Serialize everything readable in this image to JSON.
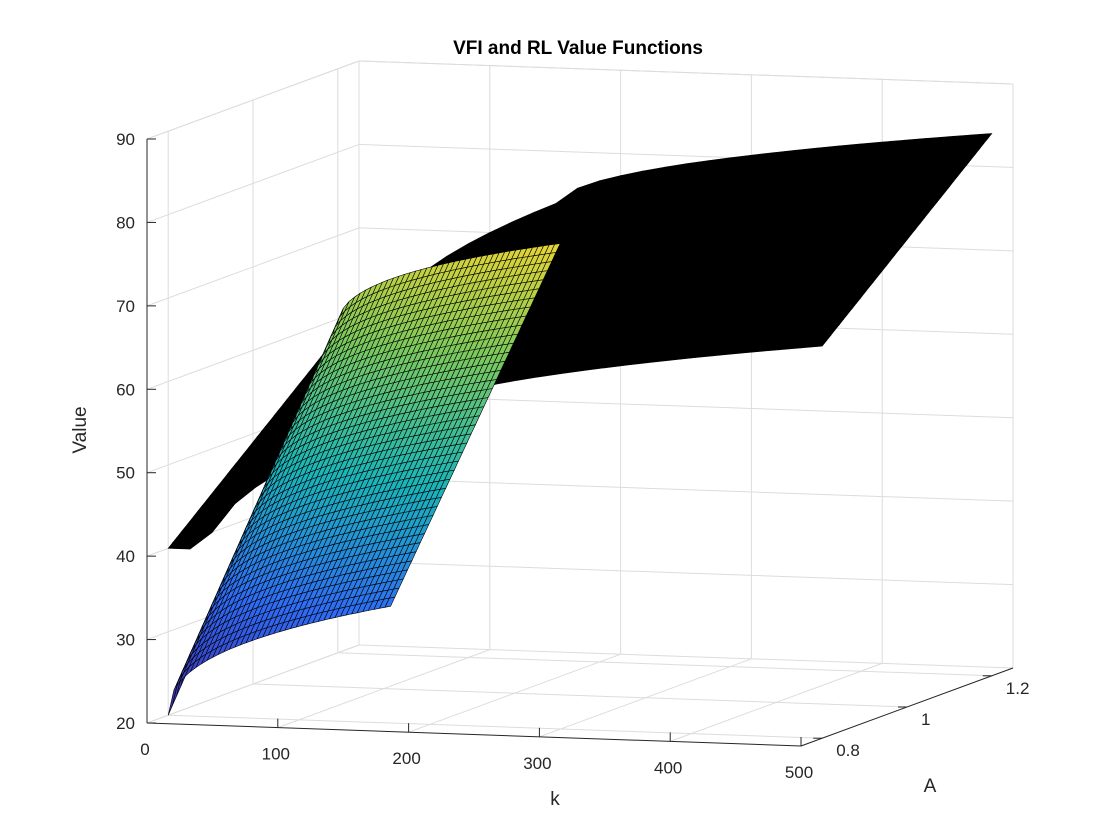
{
  "chart_data": {
    "type": "surface",
    "title": "VFI and RL Value Functions",
    "xlabel": "k",
    "ylabel": "A",
    "zlabel": "Value",
    "xlim": [
      0,
      500
    ],
    "ylim": [
      0.75,
      1.25
    ],
    "zlim": [
      20,
      90
    ],
    "x_ticks": [
      "0",
      "100",
      "200",
      "300",
      "400",
      "500"
    ],
    "y_ticks": [
      "0.8",
      "1",
      "1.2"
    ],
    "z_ticks": [
      "20",
      "30",
      "40",
      "50",
      "60",
      "70",
      "80",
      "90"
    ],
    "grid": true,
    "colormap": [
      "#3e26a8",
      "#2f6cf5",
      "#19b6b9",
      "#7dca5c",
      "#f9d62d"
    ],
    "series": [
      {
        "name": "",
        "surface_color": "colormap",
        "k_range": [
          0,
          170
        ],
        "A_range": [
          0.8,
          1.2
        ],
        "values": [
          {
            "k": 0,
            "A": 0.8,
            "value": 20
          },
          {
            "k": 170,
            "A": 0.8,
            "value": 34
          },
          {
            "k": 0,
            "A": 1.2,
            "value": 59
          },
          {
            "k": 170,
            "A": 1.2,
            "value": 70
          }
        ]
      },
      {
        "name": "",
        "surface_color": "#000000",
        "k_range": [
          0,
          500
        ],
        "A_range": [
          0.8,
          1.2
        ],
        "values": [
          {
            "k": 30,
            "A": 0.8,
            "value": 40
          },
          {
            "k": 170,
            "A": 0.8,
            "value": 56
          },
          {
            "k": 500,
            "A": 0.8,
            "value": 67
          },
          {
            "k": 30,
            "A": 1.2,
            "value": 58
          },
          {
            "k": 170,
            "A": 1.2,
            "value": 75
          },
          {
            "k": 500,
            "A": 1.2,
            "value": 85
          }
        ]
      }
    ]
  }
}
